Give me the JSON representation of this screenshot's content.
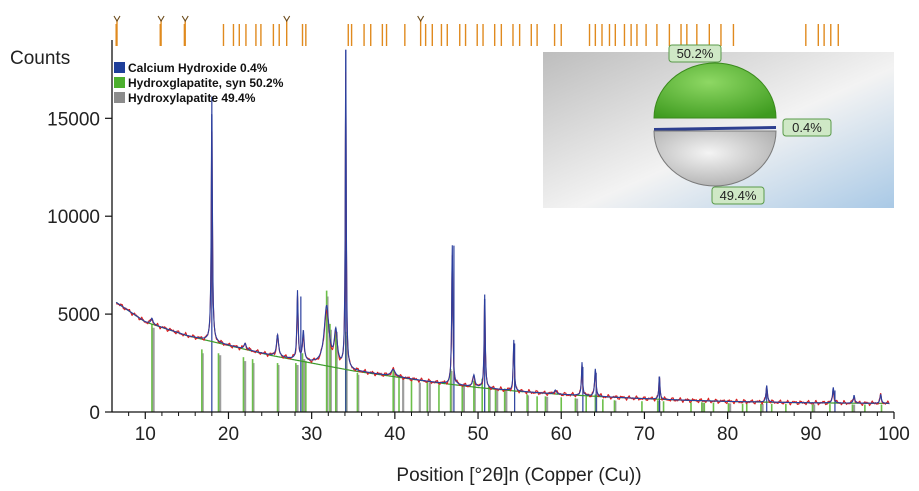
{
  "chart_data": {
    "type": "line",
    "ylabel": "Counts",
    "xlabel": "Position [°2θ]n (Copper (Cu))",
    "xlim": [
      6,
      100
    ],
    "ylim": [
      0,
      19000
    ],
    "x_ticks": [
      "10",
      "20",
      "30",
      "40",
      "50",
      "60",
      "70",
      "80",
      "90",
      "100"
    ],
    "y_ticks": [
      "0",
      "5000",
      "10000",
      "15000"
    ],
    "legend_position": "top-left",
    "legend": [
      {
        "label": "Calcium Hydroxide 0.4%",
        "color": "#1f3f9a"
      },
      {
        "label": "Hydroxglapatite, syn 50.2%",
        "color": "#4caf2e"
      },
      {
        "label": "Hydroxylapatite 49.4%",
        "color": "#8c8c8c"
      }
    ],
    "background_points": [
      [
        6.5,
        5600
      ],
      [
        10,
        4600
      ],
      [
        15,
        3900
      ],
      [
        20,
        3400
      ],
      [
        25,
        2900
      ],
      [
        30,
        2500
      ],
      [
        35,
        2100
      ],
      [
        40,
        1800
      ],
      [
        45,
        1500
      ],
      [
        50,
        1250
      ],
      [
        55,
        1050
      ],
      [
        60,
        900
      ],
      [
        65,
        780
      ],
      [
        70,
        680
      ],
      [
        75,
        600
      ],
      [
        80,
        540
      ],
      [
        85,
        500
      ],
      [
        90,
        470
      ],
      [
        95,
        450
      ],
      [
        99.5,
        440
      ]
    ],
    "peaks": [
      {
        "x": 10.8,
        "height": 300,
        "width": 0.15
      },
      {
        "x": 18.0,
        "height": 12300,
        "width": 0.08
      },
      {
        "x": 22.0,
        "height": 300,
        "width": 0.15
      },
      {
        "x": 25.9,
        "height": 1100,
        "width": 0.15
      },
      {
        "x": 28.3,
        "height": 3500,
        "width": 0.09
      },
      {
        "x": 29.0,
        "height": 1500,
        "width": 0.12
      },
      {
        "x": 31.8,
        "height": 3000,
        "width": 0.35
      },
      {
        "x": 32.9,
        "height": 1700,
        "width": 0.22
      },
      {
        "x": 34.1,
        "height": 16200,
        "width": 0.07
      },
      {
        "x": 39.8,
        "height": 350,
        "width": 0.3
      },
      {
        "x": 46.9,
        "height": 7100,
        "width": 0.08
      },
      {
        "x": 49.5,
        "height": 600,
        "width": 0.15
      },
      {
        "x": 50.8,
        "height": 4800,
        "width": 0.08
      },
      {
        "x": 54.3,
        "height": 2600,
        "width": 0.08
      },
      {
        "x": 59.3,
        "height": 200,
        "width": 0.15
      },
      {
        "x": 62.5,
        "height": 1700,
        "width": 0.08
      },
      {
        "x": 64.1,
        "height": 1400,
        "width": 0.1
      },
      {
        "x": 71.8,
        "height": 1200,
        "width": 0.08
      },
      {
        "x": 84.7,
        "height": 850,
        "width": 0.1
      },
      {
        "x": 92.7,
        "height": 800,
        "width": 0.1
      },
      {
        "x": 95.2,
        "height": 400,
        "width": 0.1
      },
      {
        "x": 98.4,
        "height": 450,
        "width": 0.1
      }
    ],
    "green_sticks": [
      [
        10.8,
        4500
      ],
      [
        16.8,
        3200
      ],
      [
        18.8,
        3000
      ],
      [
        21.8,
        2800
      ],
      [
        22.9,
        2700
      ],
      [
        25.9,
        2500
      ],
      [
        28.1,
        2500
      ],
      [
        28.9,
        3000
      ],
      [
        29.3,
        2600
      ],
      [
        31.8,
        6200
      ],
      [
        32.2,
        4500
      ],
      [
        32.9,
        4300
      ],
      [
        34.1,
        4100
      ],
      [
        35.5,
        2000
      ],
      [
        39.8,
        2200
      ],
      [
        40.5,
        1900
      ],
      [
        42.0,
        1700
      ],
      [
        43.9,
        1600
      ],
      [
        45.3,
        1400
      ],
      [
        46.7,
        2200
      ],
      [
        48.1,
        1400
      ],
      [
        49.5,
        1600
      ],
      [
        50.5,
        1700
      ],
      [
        51.3,
        1300
      ],
      [
        52.1,
        1200
      ],
      [
        53.2,
        1200
      ],
      [
        55.9,
        900
      ],
      [
        57.1,
        800
      ],
      [
        58.1,
        800
      ],
      [
        60.0,
        750
      ],
      [
        61.7,
        700
      ],
      [
        63.0,
        800
      ],
      [
        64.1,
        900
      ],
      [
        65.0,
        650
      ],
      [
        66.4,
        600
      ],
      [
        69.7,
        550
      ],
      [
        71.6,
        600
      ],
      [
        72.3,
        550
      ],
      [
        75.6,
        500
      ],
      [
        76.9,
        500
      ],
      [
        77.2,
        480
      ],
      [
        78.3,
        480
      ],
      [
        80.1,
        450
      ],
      [
        81.8,
        430
      ],
      [
        82.3,
        430
      ],
      [
        84.0,
        420
      ],
      [
        85.3,
        420
      ],
      [
        87.0,
        410
      ],
      [
        90.2,
        400
      ],
      [
        92.3,
        400
      ],
      [
        95.0,
        390
      ],
      [
        96.5,
        380
      ],
      [
        98.5,
        380
      ]
    ],
    "gray_sticks": [
      [
        11.0,
        4300
      ],
      [
        16.9,
        3000
      ],
      [
        19.0,
        2900
      ],
      [
        22.0,
        2600
      ],
      [
        23.0,
        2500
      ],
      [
        26.0,
        2400
      ],
      [
        28.3,
        2400
      ],
      [
        29.1,
        2700
      ],
      [
        31.9,
        5900
      ],
      [
        32.3,
        4200
      ],
      [
        33.0,
        4100
      ],
      [
        34.2,
        3900
      ],
      [
        35.6,
        1900
      ],
      [
        39.9,
        2100
      ],
      [
        41.0,
        1800
      ],
      [
        43.0,
        1500
      ],
      [
        44.2,
        1500
      ],
      [
        46.8,
        2100
      ],
      [
        48.3,
        1300
      ],
      [
        49.6,
        1500
      ],
      [
        51.4,
        1200
      ],
      [
        52.3,
        1150
      ],
      [
        53.4,
        1100
      ],
      [
        56.0,
        850
      ],
      [
        58.3,
        780
      ],
      [
        61.9,
        680
      ],
      [
        64.2,
        850
      ],
      [
        66.5,
        580
      ],
      [
        71.8,
        560
      ],
      [
        77.0,
        470
      ],
      [
        80.3,
        440
      ],
      [
        84.2,
        410
      ],
      [
        90.4,
        390
      ],
      [
        95.2,
        380
      ]
    ],
    "blue_sticks": [
      [
        18.0,
        16100
      ],
      [
        28.7,
        5900
      ],
      [
        34.1,
        18500
      ],
      [
        47.1,
        8500
      ],
      [
        50.8,
        6000
      ],
      [
        54.4,
        3500
      ],
      [
        62.6,
        2300
      ],
      [
        64.2,
        2000
      ],
      [
        71.8,
        1700
      ],
      [
        84.7,
        1200
      ],
      [
        92.9,
        1100
      ]
    ],
    "top_ticks": [
      6.5,
      11.8,
      14.7,
      19.4,
      20.6,
      21.3,
      22.1,
      23.3,
      23.9,
      25.4,
      26.1,
      28.9,
      29.3,
      34.4,
      34.8,
      36.3,
      37.1,
      38.5,
      39.0,
      41.2,
      43.7,
      44.5,
      45.6,
      46.3,
      47.8,
      48.5,
      49.9,
      50.6,
      52.0,
      52.8,
      54.2,
      55.0,
      56.4,
      57.1,
      59.2,
      60.0,
      63.4,
      64.1,
      64.9,
      65.8,
      66.5,
      67.6,
      68.4,
      69.1,
      70.2,
      71.5,
      73.0,
      74.4,
      75.1,
      76.3,
      77.8,
      79.2,
      80.7,
      89.4,
      90.9,
      91.6,
      92.4,
      93.3
    ],
    "top_markers": [
      6.6,
      11.9,
      14.8,
      27.0,
      43.1
    ],
    "pie": {
      "slices": [
        {
          "label": "50.2%",
          "value": 50.2,
          "color": "#5fbf3a"
        },
        {
          "label": "0.4%",
          "value": 0.4,
          "color": "#2d3f8f"
        },
        {
          "label": "49.4%",
          "value": 49.4,
          "color": "#cfcfcf"
        }
      ]
    }
  }
}
